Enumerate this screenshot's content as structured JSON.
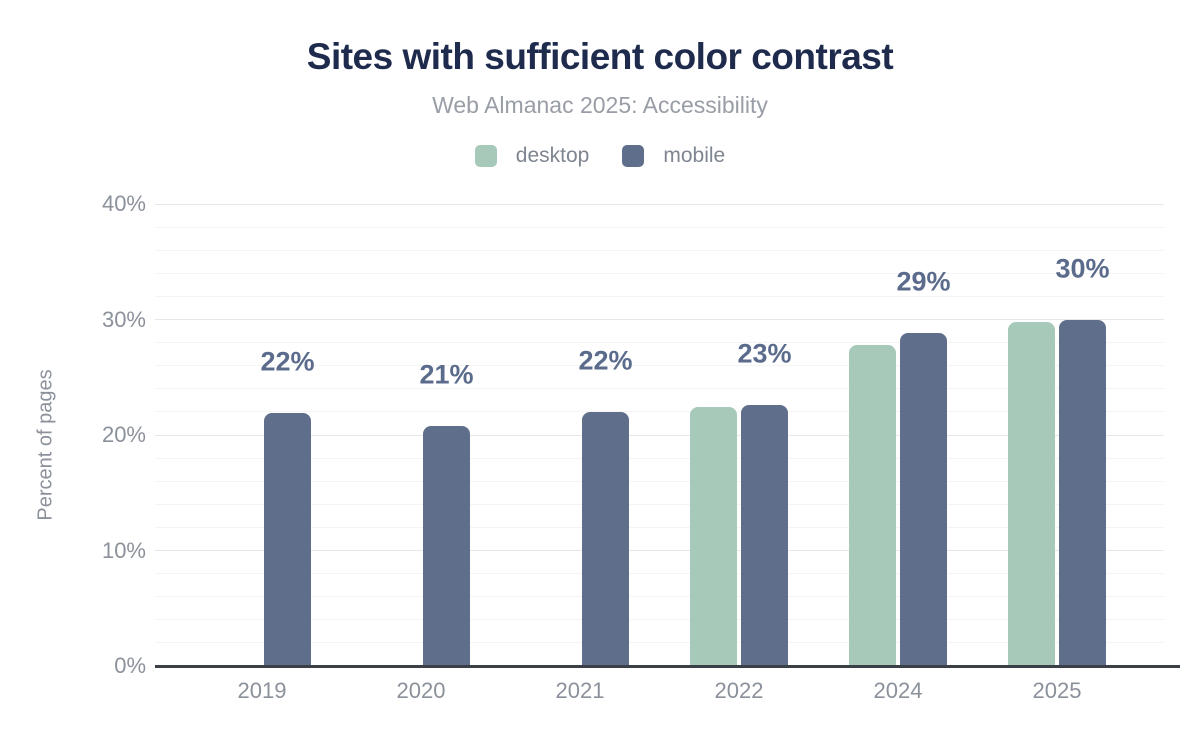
{
  "header": {
    "title": "Sites with sufficient color contrast",
    "subtitle": "Web Almanac 2025: Accessibility"
  },
  "legend": [
    {
      "label": "desktop",
      "color": "#a6c9ba"
    },
    {
      "label": "mobile",
      "color": "#5f6f8b"
    }
  ],
  "chart_data": {
    "type": "bar",
    "title": "Sites with sufficient color contrast",
    "subtitle": "Web Almanac 2025: Accessibility",
    "categories": [
      "2019",
      "2020",
      "2021",
      "2022",
      "2024",
      "2025"
    ],
    "series": [
      {
        "name": "desktop",
        "color": "#a6c9ba",
        "values": [
          null,
          null,
          null,
          22.4,
          27.8,
          29.8
        ]
      },
      {
        "name": "mobile",
        "color": "#5f6f8b",
        "values": [
          21.9,
          20.8,
          22.0,
          22.6,
          28.8,
          30.0
        ]
      }
    ],
    "data_labels": [
      "22%",
      "21%",
      "22%",
      "23%",
      "29%",
      "30%"
    ],
    "xlabel": "",
    "ylabel": "Percent of pages",
    "ylim": [
      0,
      40
    ],
    "yticks": [
      "0%",
      "10%",
      "20%",
      "30%",
      "40%"
    ],
    "ytick_values": [
      0,
      10,
      20,
      30,
      40
    ],
    "minor_grid_step": 2,
    "grid": true,
    "legend_position": "top"
  },
  "colors": {
    "title_text": "#1e2b4d",
    "subtitle_text": "#989da6",
    "axis_text": "#8b919b",
    "legend_text": "#7f8691",
    "bar_value_label": "#5b6b8c",
    "axis_line": "#3b4046",
    "grid_major": "#e7e7e7",
    "grid_minor": "#f4f4f4",
    "desktop_bar": "#a6c9ba",
    "mobile_bar": "#5f6f8b",
    "background": "#ffffff"
  }
}
